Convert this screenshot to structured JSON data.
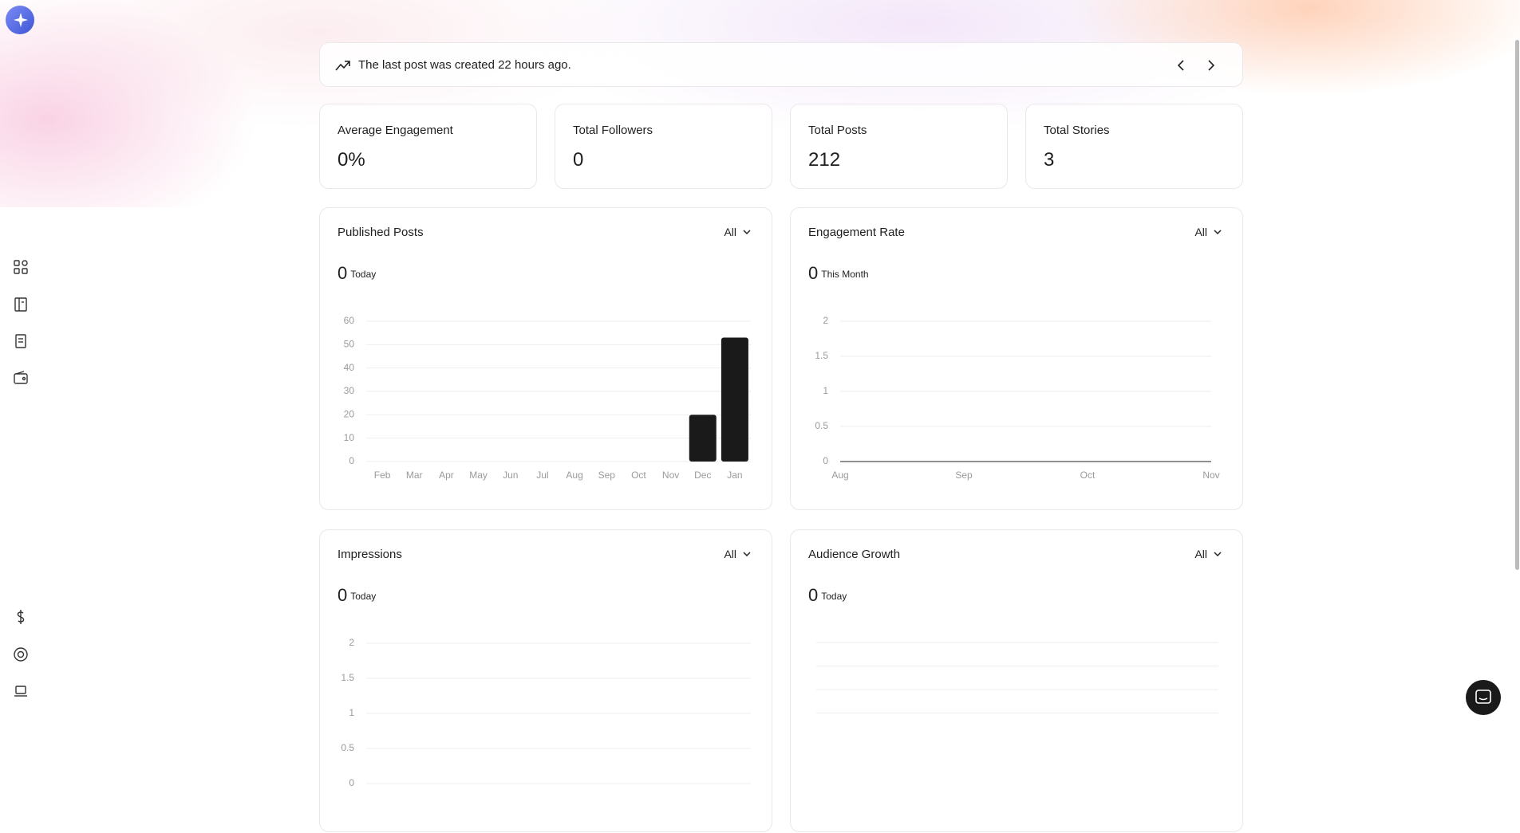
{
  "banner": {
    "text": "The last post was created 22 hours ago."
  },
  "stats": [
    {
      "label": "Average Engagement",
      "value": "0%"
    },
    {
      "label": "Total Followers",
      "value": "0"
    },
    {
      "label": "Total Posts",
      "value": "212"
    },
    {
      "label": "Total Stories",
      "value": "3"
    }
  ],
  "cards": [
    {
      "filter": "All",
      "count": "0",
      "period": "Today"
    },
    {
      "filter": "All",
      "count": "0",
      "period": "This Month"
    },
    {
      "filter": "All",
      "count": "0",
      "period": "Today"
    },
    {
      "filter": "All",
      "count": "0",
      "period": "Today"
    }
  ],
  "chart_data": [
    {
      "type": "bar",
      "title": "Published Posts",
      "categories": [
        "Feb",
        "Mar",
        "Apr",
        "May",
        "Jun",
        "Jul",
        "Aug",
        "Sep",
        "Oct",
        "Nov",
        "Dec",
        "Jan"
      ],
      "values": [
        0,
        0,
        0,
        0,
        0,
        0,
        0,
        0,
        0,
        0,
        20,
        53
      ],
      "color": "#1a1a1a",
      "ylim": [
        0,
        60
      ],
      "yticks": [
        0,
        10,
        20,
        30,
        40,
        50,
        60
      ],
      "grid": true
    },
    {
      "type": "line",
      "title": "Engagement Rate",
      "categories": [
        "Aug",
        "Sep",
        "Oct",
        "Nov"
      ],
      "values": [
        0,
        0,
        0,
        0
      ],
      "color": "#6b6b6b",
      "ylim": [
        0,
        2
      ],
      "yticks": [
        0,
        0.5,
        1,
        1.5,
        2
      ],
      "grid": true
    },
    {
      "type": "line",
      "title": "Impressions",
      "ylim": [
        0,
        2
      ],
      "yticks": [
        0,
        0.5,
        1,
        1.5,
        2
      ],
      "grid": true
    },
    {
      "type": "line",
      "title": "Audience Growth"
    }
  ]
}
